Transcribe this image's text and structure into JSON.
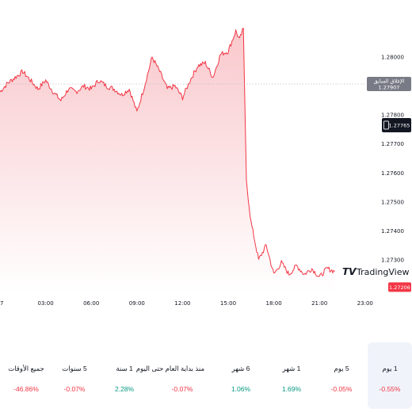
{
  "chart_data": {
    "type": "area",
    "ylim": [
      1.27185,
      1.28115
    ],
    "y_ticks": [
      "1.28000",
      "1.27900",
      "1.27800",
      "1.27700",
      "1.27600",
      "1.27500",
      "1.27400",
      "1.27300"
    ],
    "x_tick_labels": [
      "7",
      "03:00",
      "06:00",
      "09:00",
      "12:00",
      "15:00",
      "18:00",
      "21:00",
      "23:00"
    ],
    "series": [
      {
        "hour": [
          0,
          0.5,
          1,
          1.5,
          2,
          2.5,
          3,
          3.5,
          4,
          4.5,
          5,
          5.5,
          6,
          6.5,
          7,
          7.5,
          8,
          8.5,
          9,
          9.5,
          10,
          10.5,
          11,
          11.5,
          12,
          12.5,
          13,
          13.5,
          14,
          14.5,
          15,
          15.5,
          15.75,
          16,
          16.2,
          16.5,
          17,
          17.5,
          18,
          18.5,
          19,
          19.5,
          20,
          20.5,
          21,
          21.5,
          22
        ],
        "values": [
          1.2788,
          1.2791,
          1.2793,
          1.2795,
          1.2792,
          1.2789,
          1.2792,
          1.2788,
          1.2785,
          1.2789,
          1.2788,
          1.279,
          1.2789,
          1.2792,
          1.279,
          1.2789,
          1.2787,
          1.2789,
          1.2781,
          1.279,
          1.28,
          1.2795,
          1.2789,
          1.279,
          1.2786,
          1.2792,
          1.2797,
          1.2798,
          1.2793,
          1.2801,
          1.2802,
          1.2809,
          1.2806,
          1.281,
          1.2757,
          1.2743,
          1.273,
          1.2735,
          1.2725,
          1.2729,
          1.2725,
          1.2728,
          1.2725,
          1.2727,
          1.2724,
          1.2727,
          1.2726
        ]
      }
    ],
    "colors": {
      "line": "#f23645",
      "fill_top": "#f9c8cc",
      "fill_bottom": "#ffffff",
      "badge_prev": "#787b86",
      "badge_low": "#f23645",
      "badge_dark": "#131722"
    },
    "markers": {
      "prev_close": {
        "label": "الإغلاق السابق",
        "value": "1.27907"
      },
      "ask": {
        "value": "1.27765",
        "icon": "bid-ask-icon"
      },
      "last": {
        "value": "1.27206"
      }
    },
    "watermark": "TradingView"
  },
  "performance": [
    {
      "label": "1 يوم",
      "value": "-0.55%",
      "direction": "neg",
      "active": true
    },
    {
      "label": "5 يوم",
      "value": "-0.05%",
      "direction": "neg",
      "active": false
    },
    {
      "label": "1 شهر",
      "value": "1.69%",
      "direction": "pos",
      "active": false
    },
    {
      "label": "6 شهر",
      "value": "1.06%",
      "direction": "pos",
      "active": false
    },
    {
      "label": "منذ بداية العام حتى اليوم",
      "value": "-0.07%",
      "direction": "neg",
      "active": false
    },
    {
      "label": "1 سنة",
      "value": "2.28%",
      "direction": "pos",
      "active": false
    },
    {
      "label": "5 سنوات",
      "value": "-0.07%",
      "direction": "neg",
      "active": false
    },
    {
      "label": "جميع الأوقات",
      "value": "-46.86%",
      "direction": "neg",
      "active": false
    }
  ]
}
